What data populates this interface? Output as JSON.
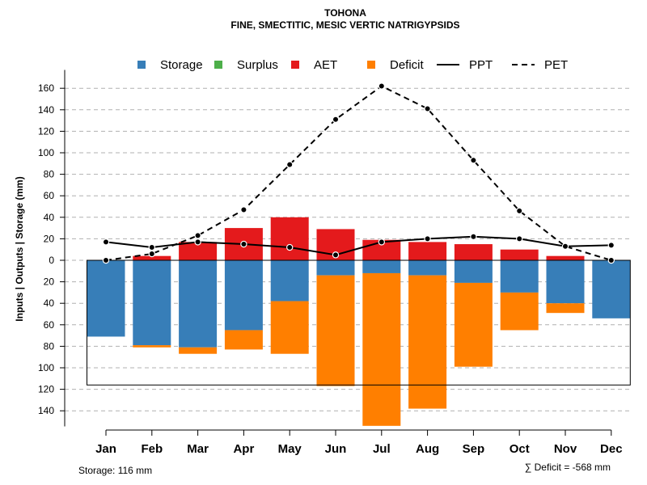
{
  "chart_data": {
    "type": "bar",
    "title": "TOHONA",
    "subtitle": "FINE, SMECTITIC, MESIC VERTIC NATRIGYPSIDS",
    "ylabel": "Inputs | Outputs | Storage    (mm)",
    "categories": [
      "Jan",
      "Feb",
      "Mar",
      "Apr",
      "May",
      "Jun",
      "Jul",
      "Aug",
      "Sep",
      "Oct",
      "Nov",
      "Dec"
    ],
    "ylim": [
      -150,
      165
    ],
    "yticks": [
      160,
      140,
      120,
      100,
      80,
      60,
      40,
      20,
      0,
      -20,
      -40,
      -60,
      -80,
      -100,
      -120,
      -140
    ],
    "ytick_labels": [
      "160",
      "140",
      "120",
      "100",
      "80",
      "60",
      "40",
      "20",
      "0",
      "20",
      "40",
      "60",
      "80",
      "100",
      "120",
      "140"
    ],
    "grid": true,
    "legend": {
      "placement": "top",
      "entries": [
        {
          "label": "Storage",
          "kind": "square",
          "color": "#377EB8"
        },
        {
          "label": "Surplus",
          "kind": "square",
          "color": "#4DAF4A"
        },
        {
          "label": "AET",
          "kind": "square",
          "color": "#E41A1C"
        },
        {
          "label": "Deficit",
          "kind": "square",
          "color": "#FF7F00"
        },
        {
          "label": "PPT",
          "kind": "solid-line",
          "color": "#000000"
        },
        {
          "label": "PET",
          "kind": "dashed-line",
          "color": "#000000"
        }
      ]
    },
    "series": [
      {
        "name": "Storage",
        "color": "#377EB8",
        "values": [
          -71,
          -79,
          -81,
          -65,
          -38,
          -14,
          -12,
          -14,
          -21,
          -30,
          -40,
          -54
        ]
      },
      {
        "name": "Surplus",
        "color": "#4DAF4A",
        "values": [
          0,
          0,
          0,
          0,
          0,
          0,
          0,
          0,
          0,
          0,
          0,
          0
        ]
      },
      {
        "name": "AET",
        "color": "#E41A1C",
        "values": [
          0,
          4,
          17,
          30,
          40,
          29,
          19,
          17,
          15,
          10,
          4,
          0
        ]
      },
      {
        "name": "Deficit",
        "color": "#FF7F00",
        "values": [
          0,
          -2,
          -6,
          -18,
          -49,
          -103,
          -142,
          -124,
          -78,
          -35,
          -9,
          0
        ]
      },
      {
        "name": "PPT",
        "color": "#000000",
        "style": "solid",
        "values": [
          17,
          12,
          17,
          15,
          12,
          5,
          17,
          20,
          22,
          20,
          13,
          14
        ]
      },
      {
        "name": "PET",
        "color": "#000000",
        "style": "dashed",
        "values": [
          0,
          6,
          23,
          47,
          89,
          131,
          162,
          141,
          93,
          46,
          13,
          0
        ]
      }
    ],
    "storage_capacity": 116,
    "footer": {
      "storage_text": "Storage: 116 mm",
      "deficit_text": "∑ Deficit = -568 mm"
    }
  }
}
